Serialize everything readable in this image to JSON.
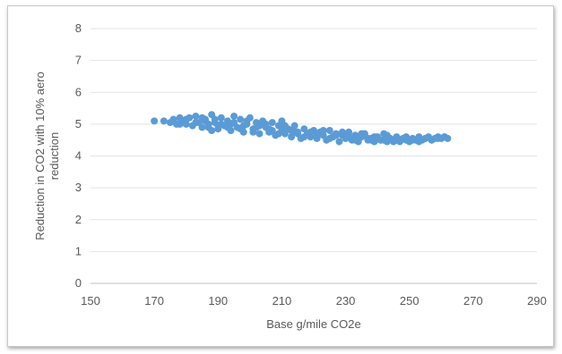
{
  "chart_data": {
    "type": "scatter",
    "title": "",
    "xlabel": "Base g/mile CO2e",
    "ylabel": "Reduction in CO2 with 10% aero reduction",
    "xlim": [
      150,
      290
    ],
    "ylim": [
      0,
      8
    ],
    "xticks": [
      150,
      170,
      190,
      210,
      230,
      250,
      270,
      290
    ],
    "yticks": [
      0,
      1,
      2,
      3,
      4,
      5,
      6,
      7,
      8
    ],
    "grid": true,
    "legend": "none",
    "marker_color": "#5b9bd5",
    "series": [
      {
        "x": [
          170,
          173,
          175,
          176,
          177,
          178,
          179,
          180,
          181,
          182,
          183,
          184,
          185,
          186,
          187,
          188,
          188,
          189,
          190,
          191,
          192,
          193,
          194,
          195,
          196,
          197,
          198,
          199,
          200,
          201,
          202,
          203,
          204,
          205,
          206,
          207,
          208,
          209,
          210,
          211,
          212,
          213,
          214,
          215,
          216,
          217,
          218,
          219,
          220,
          221,
          222,
          223,
          224,
          225,
          226,
          227,
          228,
          229,
          230,
          231,
          232,
          233,
          234,
          235,
          236,
          237,
          238,
          239,
          240,
          241,
          242,
          243,
          244,
          245,
          246,
          247,
          248,
          249,
          250,
          251,
          252,
          253,
          254,
          255,
          256,
          257,
          258,
          259,
          260,
          261,
          262
        ],
        "y": [
          5.1,
          5.1,
          5.05,
          5.15,
          5.0,
          5.2,
          5.1,
          5.0,
          5.2,
          4.95,
          5.25,
          5.05,
          4.9,
          5.15,
          5.0,
          4.8,
          5.3,
          5.05,
          4.85,
          5.2,
          4.95,
          5.1,
          4.8,
          5.25,
          4.9,
          5.15,
          4.75,
          5.0,
          5.2,
          4.85,
          5.05,
          4.7,
          5.1,
          4.9,
          4.75,
          5.05,
          4.65,
          4.95,
          5.1,
          4.7,
          4.85,
          4.6,
          4.95,
          4.75,
          4.55,
          4.85,
          4.7,
          4.6,
          4.8,
          4.55,
          4.75,
          4.65,
          4.5,
          4.8,
          4.6,
          4.7,
          4.45,
          4.65,
          4.55,
          4.75,
          4.5,
          4.65,
          4.45,
          4.6,
          4.7,
          4.5,
          4.55,
          4.45,
          4.6,
          4.5,
          4.7,
          4.45,
          4.55,
          4.5,
          4.6,
          4.45,
          4.55,
          4.5,
          4.45,
          4.55,
          4.5,
          4.6,
          4.5,
          4.55,
          4.6,
          4.5,
          4.55,
          4.6,
          4.55,
          4.6,
          4.55
        ]
      },
      {
        "x": [
          178,
          180,
          183,
          185,
          187,
          189,
          191,
          193,
          195,
          197,
          199,
          201,
          203,
          205,
          207,
          209,
          211,
          213,
          215,
          217,
          219,
          221,
          223,
          225,
          227,
          229,
          231,
          233,
          235,
          237,
          239,
          241,
          243,
          245,
          247,
          249,
          251,
          253,
          255,
          257,
          259,
          261
        ],
        "y": [
          5.0,
          5.15,
          5.05,
          5.2,
          4.9,
          5.15,
          5.0,
          4.9,
          5.05,
          4.85,
          5.1,
          4.75,
          4.95,
          5.0,
          4.8,
          4.7,
          4.95,
          4.8,
          4.7,
          4.6,
          4.75,
          4.65,
          4.8,
          4.55,
          4.65,
          4.75,
          4.6,
          4.5,
          4.7,
          4.55,
          4.6,
          4.5,
          4.65,
          4.45,
          4.5,
          4.6,
          4.5,
          4.45,
          4.55,
          4.5,
          4.55,
          4.6
        ]
      },
      {
        "x": [
          186,
          190,
          194,
          198,
          202,
          206,
          210,
          214,
          218,
          222,
          226,
          230,
          234,
          238,
          242,
          246
        ],
        "y": [
          5.1,
          4.95,
          5.0,
          4.95,
          4.9,
          4.85,
          4.8,
          4.75,
          4.7,
          4.7,
          4.6,
          4.6,
          4.55,
          4.5,
          4.5,
          4.5
        ]
      }
    ]
  }
}
